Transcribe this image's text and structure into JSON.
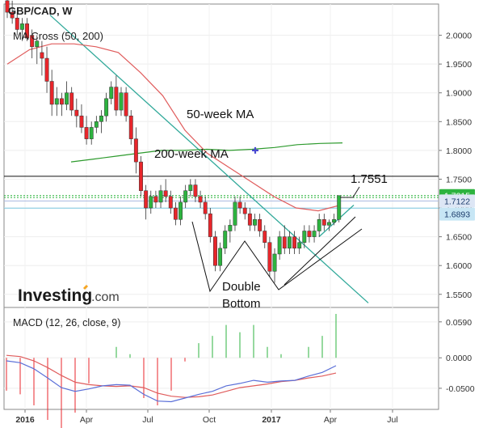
{
  "header": {
    "title": "GBP/CAD, W"
  },
  "indicators": {
    "ma_label": "MA Cross (50, 200)",
    "macd_label": "MACD (12, 26, close, 9)"
  },
  "brand": {
    "name": "Investing",
    "suffix": ".com"
  },
  "annotations": {
    "ma50": "50-week MA",
    "ma200": "200-week MA",
    "level": "1.7551",
    "pattern_line1": "Double",
    "pattern_line2": "Bottom"
  },
  "colors": {
    "up": "#2db33f",
    "down": "#e8262b",
    "ma_fast": "#e05c5c",
    "ma_slow": "#2d9a2d",
    "trend": "#31a99a",
    "macd": "#5a6fd8",
    "signal": "#e05c5c",
    "accent": "#1f78d1"
  },
  "chart_data": [
    {
      "type": "candlestick",
      "ylim": [
        1.53,
        2.05
      ],
      "y_ticks": [
        "2.0000",
        "1.9500",
        "1.9000",
        "1.8500",
        "1.8000",
        "1.7500",
        "1.7000",
        "1.6500",
        "1.6000",
        "1.5500"
      ],
      "x_ticks": [
        "2016",
        "Apr",
        "Jul",
        "Oct",
        "2017",
        "Apr",
        "Jul"
      ],
      "price_badges": [
        {
          "value": "1.7215",
          "color": "#2db33f"
        },
        {
          "value": "1.7122",
          "color": "#dde6f5"
        },
        {
          "value": "1.6893",
          "color": "#c7e6f5"
        }
      ],
      "candles": [
        [
          2.06,
          2.07,
          2.03,
          2.04
        ],
        [
          2.04,
          2.06,
          2.02,
          2.03
        ],
        [
          2.03,
          2.04,
          2.0,
          2.01
        ],
        [
          2.01,
          2.03,
          1.99,
          2.02
        ],
        [
          2.02,
          2.03,
          1.99,
          1.995
        ],
        [
          2.0,
          2.01,
          1.96,
          1.98
        ],
        [
          1.98,
          2.0,
          1.95,
          1.99
        ],
        [
          1.97,
          1.99,
          1.93,
          1.96
        ],
        [
          1.96,
          1.98,
          1.9,
          1.92
        ],
        [
          1.92,
          1.94,
          1.86,
          1.88
        ],
        [
          1.88,
          1.91,
          1.86,
          1.89
        ],
        [
          1.89,
          1.9,
          1.86,
          1.88
        ],
        [
          1.88,
          1.92,
          1.87,
          1.9
        ],
        [
          1.9,
          1.91,
          1.86,
          1.87
        ],
        [
          1.87,
          1.89,
          1.84,
          1.86
        ],
        [
          1.86,
          1.88,
          1.83,
          1.84
        ],
        [
          1.84,
          1.86,
          1.81,
          1.82
        ],
        [
          1.82,
          1.85,
          1.81,
          1.84
        ],
        [
          1.84,
          1.86,
          1.83,
          1.85
        ],
        [
          1.85,
          1.87,
          1.83,
          1.86
        ],
        [
          1.86,
          1.9,
          1.85,
          1.89
        ],
        [
          1.89,
          1.92,
          1.88,
          1.91
        ],
        [
          1.91,
          1.93,
          1.86,
          1.87
        ],
        [
          1.87,
          1.91,
          1.86,
          1.9
        ],
        [
          1.9,
          1.91,
          1.85,
          1.86
        ],
        [
          1.86,
          1.87,
          1.81,
          1.82
        ],
        [
          1.82,
          1.84,
          1.76,
          1.78
        ],
        [
          1.78,
          1.79,
          1.72,
          1.73
        ],
        [
          1.73,
          1.74,
          1.68,
          1.7
        ],
        [
          1.7,
          1.73,
          1.69,
          1.72
        ],
        [
          1.72,
          1.73,
          1.7,
          1.71
        ],
        [
          1.71,
          1.74,
          1.7,
          1.73
        ],
        [
          1.73,
          1.75,
          1.71,
          1.72
        ],
        [
          1.72,
          1.73,
          1.69,
          1.7
        ],
        [
          1.7,
          1.71,
          1.67,
          1.68
        ],
        [
          1.68,
          1.72,
          1.67,
          1.71
        ],
        [
          1.71,
          1.74,
          1.7,
          1.73
        ],
        [
          1.73,
          1.75,
          1.72,
          1.74
        ],
        [
          1.74,
          1.75,
          1.71,
          1.72
        ],
        [
          1.72,
          1.73,
          1.7,
          1.71
        ],
        [
          1.71,
          1.72,
          1.68,
          1.69
        ],
        [
          1.69,
          1.7,
          1.64,
          1.65
        ],
        [
          1.65,
          1.66,
          1.59,
          1.6
        ],
        [
          1.6,
          1.64,
          1.59,
          1.63
        ],
        [
          1.63,
          1.67,
          1.62,
          1.66
        ],
        [
          1.66,
          1.68,
          1.64,
          1.67
        ],
        [
          1.67,
          1.72,
          1.66,
          1.71
        ],
        [
          1.71,
          1.72,
          1.69,
          1.7
        ],
        [
          1.7,
          1.71,
          1.68,
          1.69
        ],
        [
          1.69,
          1.7,
          1.66,
          1.67
        ],
        [
          1.67,
          1.69,
          1.66,
          1.68
        ],
        [
          1.68,
          1.69,
          1.65,
          1.66
        ],
        [
          1.66,
          1.67,
          1.63,
          1.64
        ],
        [
          1.64,
          1.65,
          1.58,
          1.59
        ],
        [
          1.59,
          1.63,
          1.57,
          1.62
        ],
        [
          1.62,
          1.66,
          1.61,
          1.65
        ],
        [
          1.65,
          1.67,
          1.62,
          1.63
        ],
        [
          1.63,
          1.66,
          1.62,
          1.65
        ],
        [
          1.65,
          1.66,
          1.62,
          1.63
        ],
        [
          1.63,
          1.65,
          1.62,
          1.64
        ],
        [
          1.64,
          1.67,
          1.63,
          1.66
        ],
        [
          1.66,
          1.67,
          1.64,
          1.65
        ],
        [
          1.65,
          1.67,
          1.64,
          1.66
        ],
        [
          1.66,
          1.69,
          1.65,
          1.68
        ],
        [
          1.68,
          1.69,
          1.66,
          1.67
        ],
        [
          1.67,
          1.68,
          1.66,
          1.675
        ],
        [
          1.675,
          1.69,
          1.67,
          1.68
        ],
        [
          1.68,
          1.7215,
          1.675,
          1.7215
        ]
      ],
      "ma_fast": [
        1.95,
        1.975,
        1.985,
        1.985,
        1.98,
        1.97,
        1.935,
        1.895,
        1.835,
        1.795,
        1.77,
        1.745,
        1.72,
        1.7,
        1.695,
        1.705
      ],
      "ma_slow": [
        1.78,
        1.785,
        1.79,
        1.795,
        1.8,
        1.8,
        1.802,
        1.8,
        1.802,
        1.805,
        1.81,
        1.812,
        1.813
      ],
      "levels": {
        "resistance": 1.7551,
        "green_dotted_1": 1.7215,
        "green_dotted_2": 1.7181,
        "cyan": 1.6997,
        "blue": 1.7122
      },
      "cross_marker": 1.8
    },
    {
      "type": "line",
      "ylim": [
        -0.082,
        0.08
      ],
      "y_ticks": [
        "0.0590",
        "0.0000",
        "-0.0500"
      ],
      "series": [
        {
          "values": [
            -0.005,
            -0.008,
            -0.018,
            -0.033,
            -0.049,
            -0.055,
            -0.051,
            -0.046,
            -0.044,
            -0.045,
            -0.06,
            -0.071,
            -0.072,
            -0.066,
            -0.06,
            -0.055,
            -0.046,
            -0.042,
            -0.037,
            -0.04,
            -0.038,
            -0.037,
            -0.03,
            -0.024,
            -0.013
          ]
        },
        {
          "values": [
            0.004,
            0.002,
            -0.005,
            -0.016,
            -0.029,
            -0.04,
            -0.044,
            -0.046,
            -0.047,
            -0.046,
            -0.049,
            -0.058,
            -0.063,
            -0.065,
            -0.064,
            -0.061,
            -0.055,
            -0.049,
            -0.046,
            -0.043,
            -0.039,
            -0.037,
            -0.033,
            -0.03,
            -0.025
          ]
        }
      ]
    }
  ]
}
